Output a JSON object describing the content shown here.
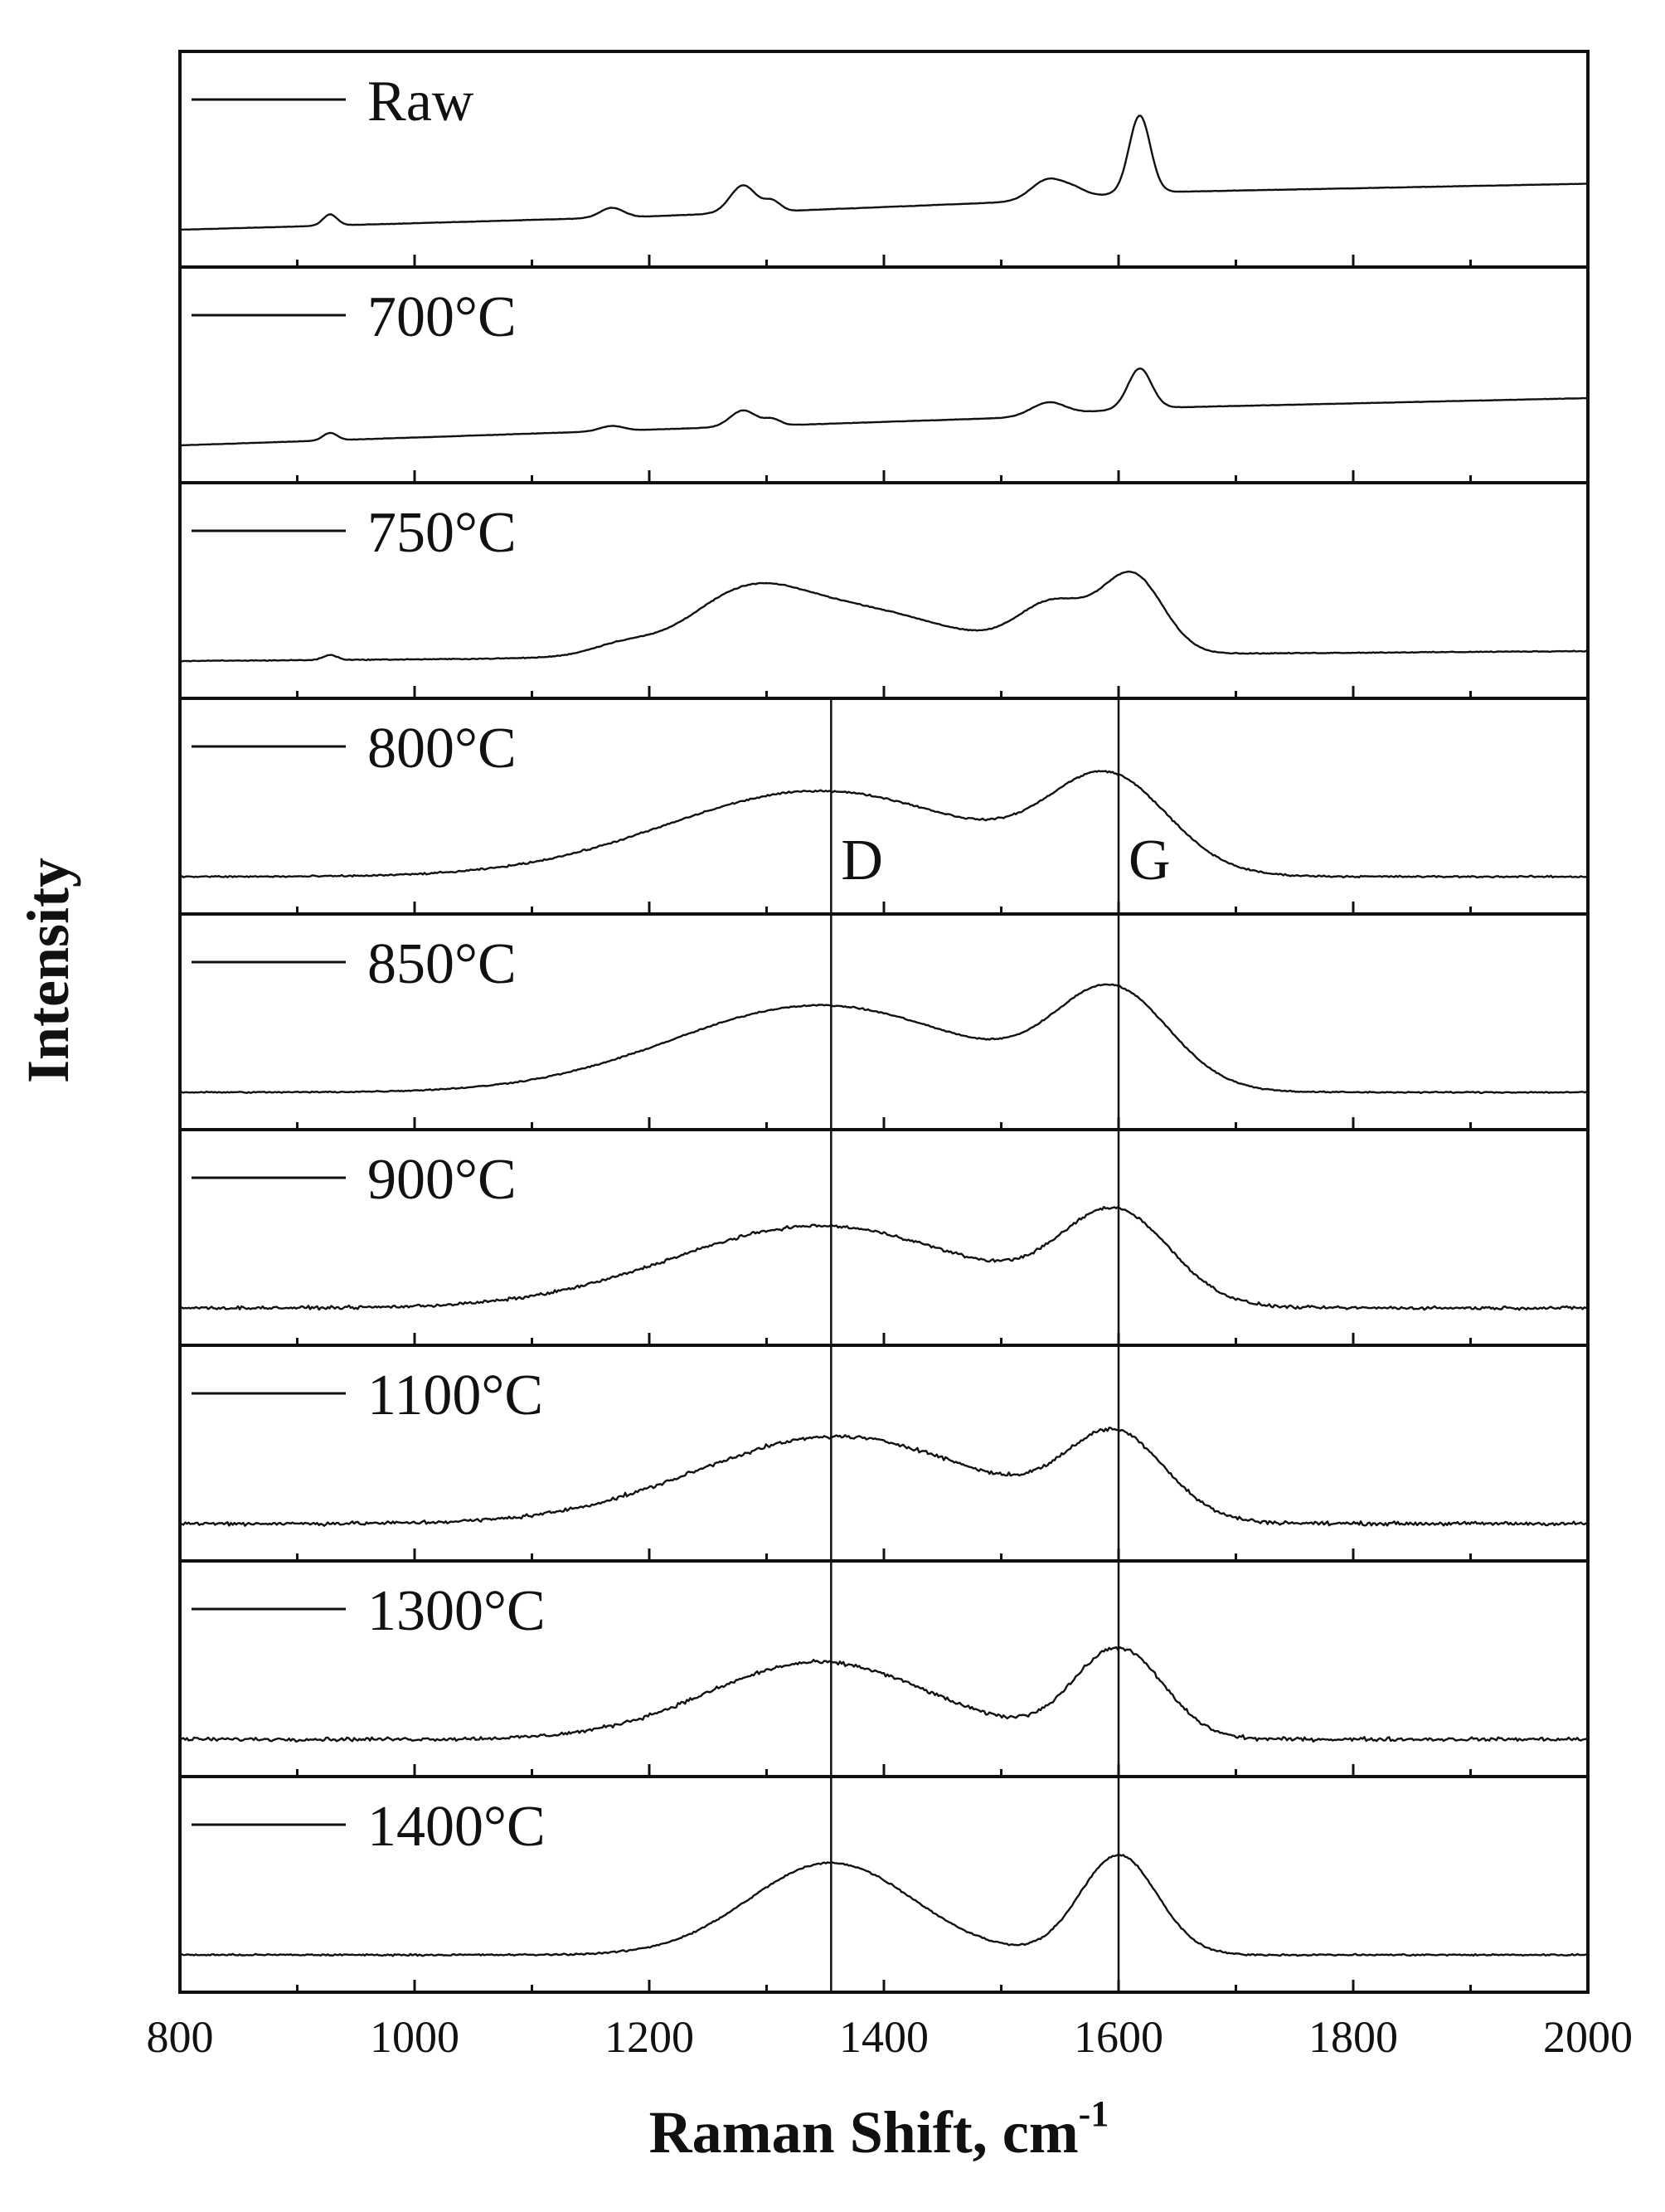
{
  "chart_data": {
    "type": "line",
    "layout": "stacked-panels",
    "xlabel": "Raman Shift, cm",
    "xlabel_superscript": "-1",
    "ylabel": "Intensity",
    "xlim": [
      800,
      2000
    ],
    "x_ticks": [
      800,
      1000,
      1200,
      1400,
      1600,
      1800,
      2000
    ],
    "x_minor_ticks": [
      900,
      1100,
      1300,
      1500,
      1700,
      1900
    ],
    "y_ticks_shown": false,
    "grid": false,
    "legend_placement": "top-left of each panel",
    "line_color": "#111111",
    "reference_lines": [
      {
        "label": "D",
        "x": 1355
      },
      {
        "label": "G",
        "x": 1600
      }
    ],
    "series": [
      {
        "name": "Raw",
        "noise": 0.002,
        "baseline": [
          [
            800,
            0.0
          ],
          [
            1180,
            0.1
          ],
          [
            1500,
            0.22
          ],
          [
            1620,
            0.3
          ],
          [
            2000,
            0.37
          ]
        ],
        "peaks": [
          {
            "center": 928,
            "width": 6,
            "height": 0.09
          },
          {
            "center": 1168,
            "width": 10,
            "height": 0.08
          },
          {
            "center": 1280,
            "width": 11,
            "height": 0.22
          },
          {
            "center": 1305,
            "width": 7,
            "height": 0.08
          },
          {
            "center": 1540,
            "width": 14,
            "height": 0.16
          },
          {
            "center": 1563,
            "width": 10,
            "height": 0.05
          },
          {
            "center": 1618,
            "width": 9,
            "height": 0.62
          }
        ]
      },
      {
        "name": "700°C",
        "noise": 0.002,
        "baseline": [
          [
            800,
            0.0
          ],
          [
            1180,
            0.12
          ],
          [
            1500,
            0.22
          ],
          [
            1620,
            0.3
          ],
          [
            2000,
            0.38
          ]
        ],
        "peaks": [
          {
            "center": 928,
            "width": 6,
            "height": 0.06
          },
          {
            "center": 1168,
            "width": 10,
            "height": 0.04
          },
          {
            "center": 1280,
            "width": 11,
            "height": 0.13
          },
          {
            "center": 1305,
            "width": 7,
            "height": 0.05
          },
          {
            "center": 1540,
            "width": 14,
            "height": 0.1
          },
          {
            "center": 1618,
            "width": 10,
            "height": 0.32
          }
        ]
      },
      {
        "name": "750°C",
        "noise": 0.005,
        "baseline": [
          [
            800,
            0.0
          ],
          [
            2000,
            0.08
          ]
        ],
        "peaks": [
          {
            "center": 928,
            "width": 6,
            "height": 0.04
          },
          {
            "center": 1175,
            "width": 25,
            "height": 0.07
          },
          {
            "center": 1280,
            "width": 45,
            "height": 0.3
          },
          {
            "center": 1360,
            "width": 90,
            "height": 0.4
          },
          {
            "center": 1545,
            "width": 30,
            "height": 0.38
          },
          {
            "center": 1612,
            "width": 26,
            "height": 0.62
          }
        ]
      },
      {
        "name": "800°C",
        "noise": 0.01,
        "baseline": [
          [
            800,
            0.0
          ],
          [
            2000,
            0.0
          ]
        ],
        "peaks": [
          {
            "center": 1345,
            "width": 130,
            "height": 0.69
          },
          {
            "center": 1592,
            "width": 50,
            "height": 0.73
          }
        ]
      },
      {
        "name": "850°C",
        "noise": 0.008,
        "baseline": [
          [
            800,
            0.0
          ],
          [
            2000,
            0.0
          ]
        ],
        "peaks": [
          {
            "center": 1345,
            "width": 125,
            "height": 0.7
          },
          {
            "center": 1595,
            "width": 48,
            "height": 0.77
          }
        ]
      },
      {
        "name": "900°C",
        "noise": 0.018,
        "baseline": [
          [
            800,
            0.0
          ],
          [
            2000,
            0.0
          ]
        ],
        "peaks": [
          {
            "center": 1345,
            "width": 125,
            "height": 0.66
          },
          {
            "center": 1598,
            "width": 46,
            "height": 0.72
          }
        ]
      },
      {
        "name": "1100°C",
        "noise": 0.022,
        "baseline": [
          [
            800,
            0.0
          ],
          [
            2000,
            0.0
          ]
        ],
        "peaks": [
          {
            "center": 1360,
            "width": 120,
            "height": 0.7
          },
          {
            "center": 1598,
            "width": 42,
            "height": 0.66
          }
        ]
      },
      {
        "name": "1300°C",
        "noise": 0.022,
        "baseline": [
          [
            800,
            0.0
          ],
          [
            2000,
            0.0
          ]
        ],
        "peaks": [
          {
            "center": 1345,
            "width": 95,
            "height": 0.62
          },
          {
            "center": 1600,
            "width": 38,
            "height": 0.72
          }
        ]
      },
      {
        "name": "1400°C",
        "noise": 0.01,
        "baseline": [
          [
            800,
            0.0
          ],
          [
            2000,
            0.0
          ]
        ],
        "peaks": [
          {
            "center": 1355,
            "width": 70,
            "height": 0.74
          },
          {
            "center": 1600,
            "width": 33,
            "height": 0.8
          }
        ]
      }
    ]
  }
}
